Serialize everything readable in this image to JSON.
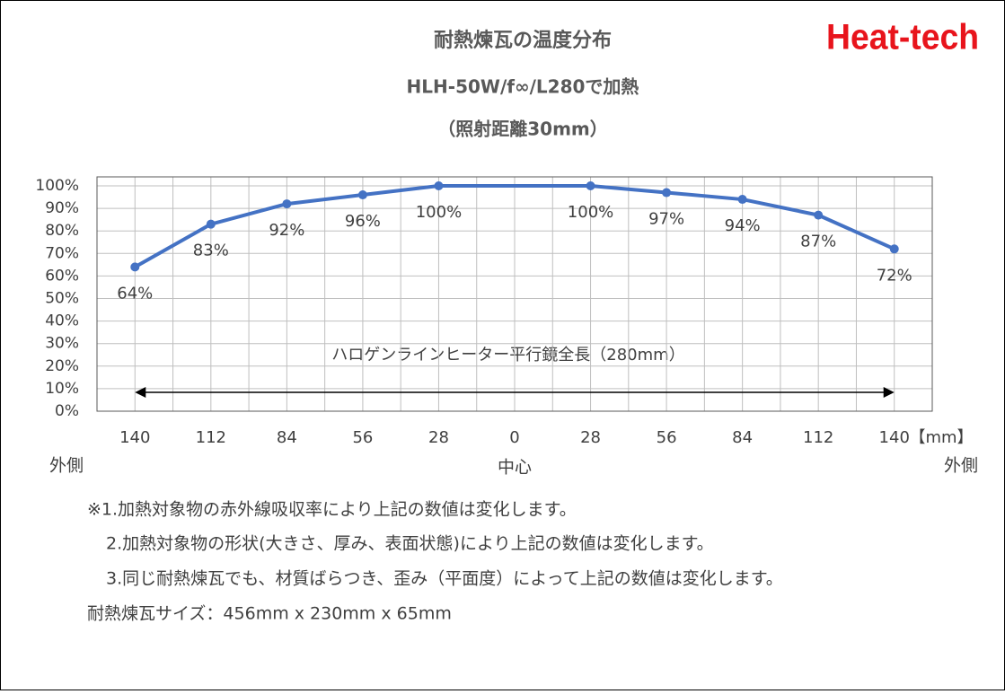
{
  "logo": "Heat-tech",
  "chart_data": {
    "type": "line",
    "title": "耐熱煉瓦の温度分布",
    "subtitle": "HLH-50W/f∞/L280で加熱",
    "subtitle2": "（照射距離30mm）",
    "x": [
      -140,
      -112,
      -84,
      -56,
      -28,
      28,
      56,
      84,
      112,
      140
    ],
    "series": [
      {
        "color": "#4472c4",
        "values": [
          64,
          83,
          92,
          96,
          100,
          100,
          97,
          94,
          87,
          72
        ],
        "value_labels": [
          "64%",
          "83%",
          "92%",
          "96%",
          "100%",
          "100%",
          "97%",
          "94%",
          "87%",
          "72%"
        ]
      }
    ],
    "xlim": [
      -154,
      154
    ],
    "xticks": [
      {
        "value": -140,
        "label": "140"
      },
      {
        "value": -112,
        "label": "112"
      },
      {
        "value": -84,
        "label": "84"
      },
      {
        "value": -56,
        "label": "56"
      },
      {
        "value": -28,
        "label": "28"
      },
      0,
      28,
      56,
      84,
      112,
      140
    ],
    "xgrid": [
      -154,
      -140,
      -126,
      -112,
      -98,
      -84,
      -70,
      -56,
      -42,
      -28,
      -14,
      0,
      14,
      28,
      42,
      56,
      70,
      84,
      98,
      112,
      126,
      140,
      154
    ],
    "x_unit": "【mm】",
    "x_left_label": "外側",
    "x_center_label": "中心",
    "x_right_label": "外側",
    "ylim": [
      0,
      100
    ],
    "yticks": [
      {
        "value": 0,
        "label": "0%"
      },
      {
        "value": 10,
        "label": "10%"
      },
      {
        "value": 20,
        "label": "20%"
      },
      {
        "value": 30,
        "label": "30%"
      },
      {
        "value": 40,
        "label": "40%"
      },
      {
        "value": 50,
        "label": "50%"
      },
      {
        "value": 60,
        "label": "60%"
      },
      {
        "value": 70,
        "label": "70%"
      },
      {
        "value": 80,
        "label": "80%"
      },
      {
        "value": 90,
        "label": "90%"
      },
      {
        "value": 100,
        "label": "100%"
      }
    ],
    "grid": true,
    "annotation": "ハロゲンラインヒーター平行鏡全長（280mm）"
  },
  "notes": [
    "※1.加熱対象物の赤外線吸収率により上記の数値は変化します。",
    "2.加熱対象物の形状(大きさ、厚み、表面状態)により上記の数値は変化します。",
    "3.同じ耐熱煉瓦でも、材質ばらつき、歪み（平面度）によって上記の数値は変化します。",
    "耐熱煉瓦サイズ：456mm x 230mm x 65mm"
  ]
}
